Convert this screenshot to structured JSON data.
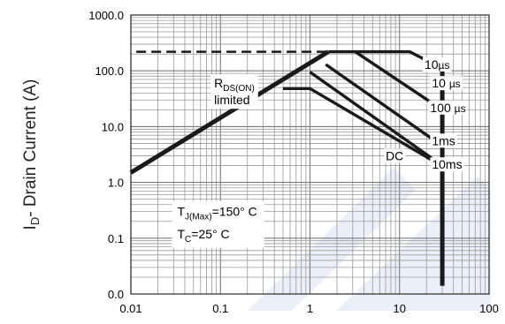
{
  "chart_data": {
    "type": "line",
    "scale": {
      "x": "log",
      "y": "log"
    },
    "xlim": [
      0.01,
      100
    ],
    "ylim": [
      0.01,
      1000
    ],
    "x_ticks": [
      {
        "value": 0.01,
        "label": "0.01"
      },
      {
        "value": 0.1,
        "label": "0.1"
      },
      {
        "value": 1,
        "label": "1"
      },
      {
        "value": 10,
        "label": "10"
      },
      {
        "value": 100,
        "label": "100"
      }
    ],
    "y_ticks": [
      {
        "value": 0.01,
        "label": "0.0"
      },
      {
        "value": 0.1,
        "label": "0.1"
      },
      {
        "value": 1,
        "label": "1.0"
      },
      {
        "value": 10,
        "label": "10.0"
      },
      {
        "value": 100,
        "label": "100.0"
      },
      {
        "value": 1000,
        "label": "1000.0"
      }
    ],
    "ylabel": {
      "main": "I",
      "sub": "D",
      "rest": "- Drain Current (A)"
    },
    "xlabel": "",
    "grid": true,
    "colors": {
      "curves": "#1a1a1a",
      "watermark": "#3b63c9"
    },
    "rds_limit": {
      "x": [
        0.01,
        1.6
      ],
      "y": [
        1.5,
        220
      ]
    },
    "package_limit": {
      "x": [
        0.0115,
        1.6
      ],
      "y": [
        220,
        220
      ]
    },
    "series": [
      {
        "name": "10µs",
        "x": [
          1.6,
          13,
          30
        ],
        "y": [
          220,
          220,
          110
        ]
      },
      {
        "name": "10 µs",
        "x": [
          3.2,
          30
        ],
        "y": [
          220,
          20
        ]
      },
      {
        "name": "100 µs",
        "x": [
          1.5,
          30
        ],
        "y": [
          130,
          4.5
        ]
      },
      {
        "name": "1ms",
        "x": [
          1.0,
          30
        ],
        "y": [
          95,
          2
        ]
      },
      {
        "name": "10ms",
        "x": [
          0.5,
          1.0,
          30
        ],
        "y": [
          48,
          48,
          1.95
        ]
      },
      {
        "name": "DC",
        "x": [
          30,
          30
        ],
        "y": [
          110,
          0.014
        ]
      }
    ],
    "curve_labels": [
      {
        "text_main": "10",
        "text_unit": "µs",
        "x": 19,
        "y": 130
      },
      {
        "text_main": "10 ",
        "text_unit": "µs",
        "x": 23,
        "y": 60
      },
      {
        "text_main": "100 ",
        "text_unit": "µs",
        "x": 22,
        "y": 22
      },
      {
        "text_main": "1ms",
        "text_unit": "",
        "x": 23,
        "y": 5.6
      },
      {
        "text_main": "10ms",
        "text_unit": "",
        "x": 23,
        "y": 2.1
      },
      {
        "text_main": "DC",
        "text_unit": "",
        "x": 7,
        "y": 3.0
      }
    ],
    "annotations": {
      "rds": {
        "main": "R",
        "sub": "DS(ON)",
        "line2": "limited",
        "x": 0.085,
        "y": 50
      },
      "tj": {
        "main": "T",
        "sub": "J(Max)",
        "rest": "=150° C",
        "x": 0.033,
        "y": 0.25
      },
      "tc": {
        "main": "T",
        "sub": "C",
        "rest": "=25° C",
        "x": 0.033,
        "y": 0.1
      }
    }
  }
}
